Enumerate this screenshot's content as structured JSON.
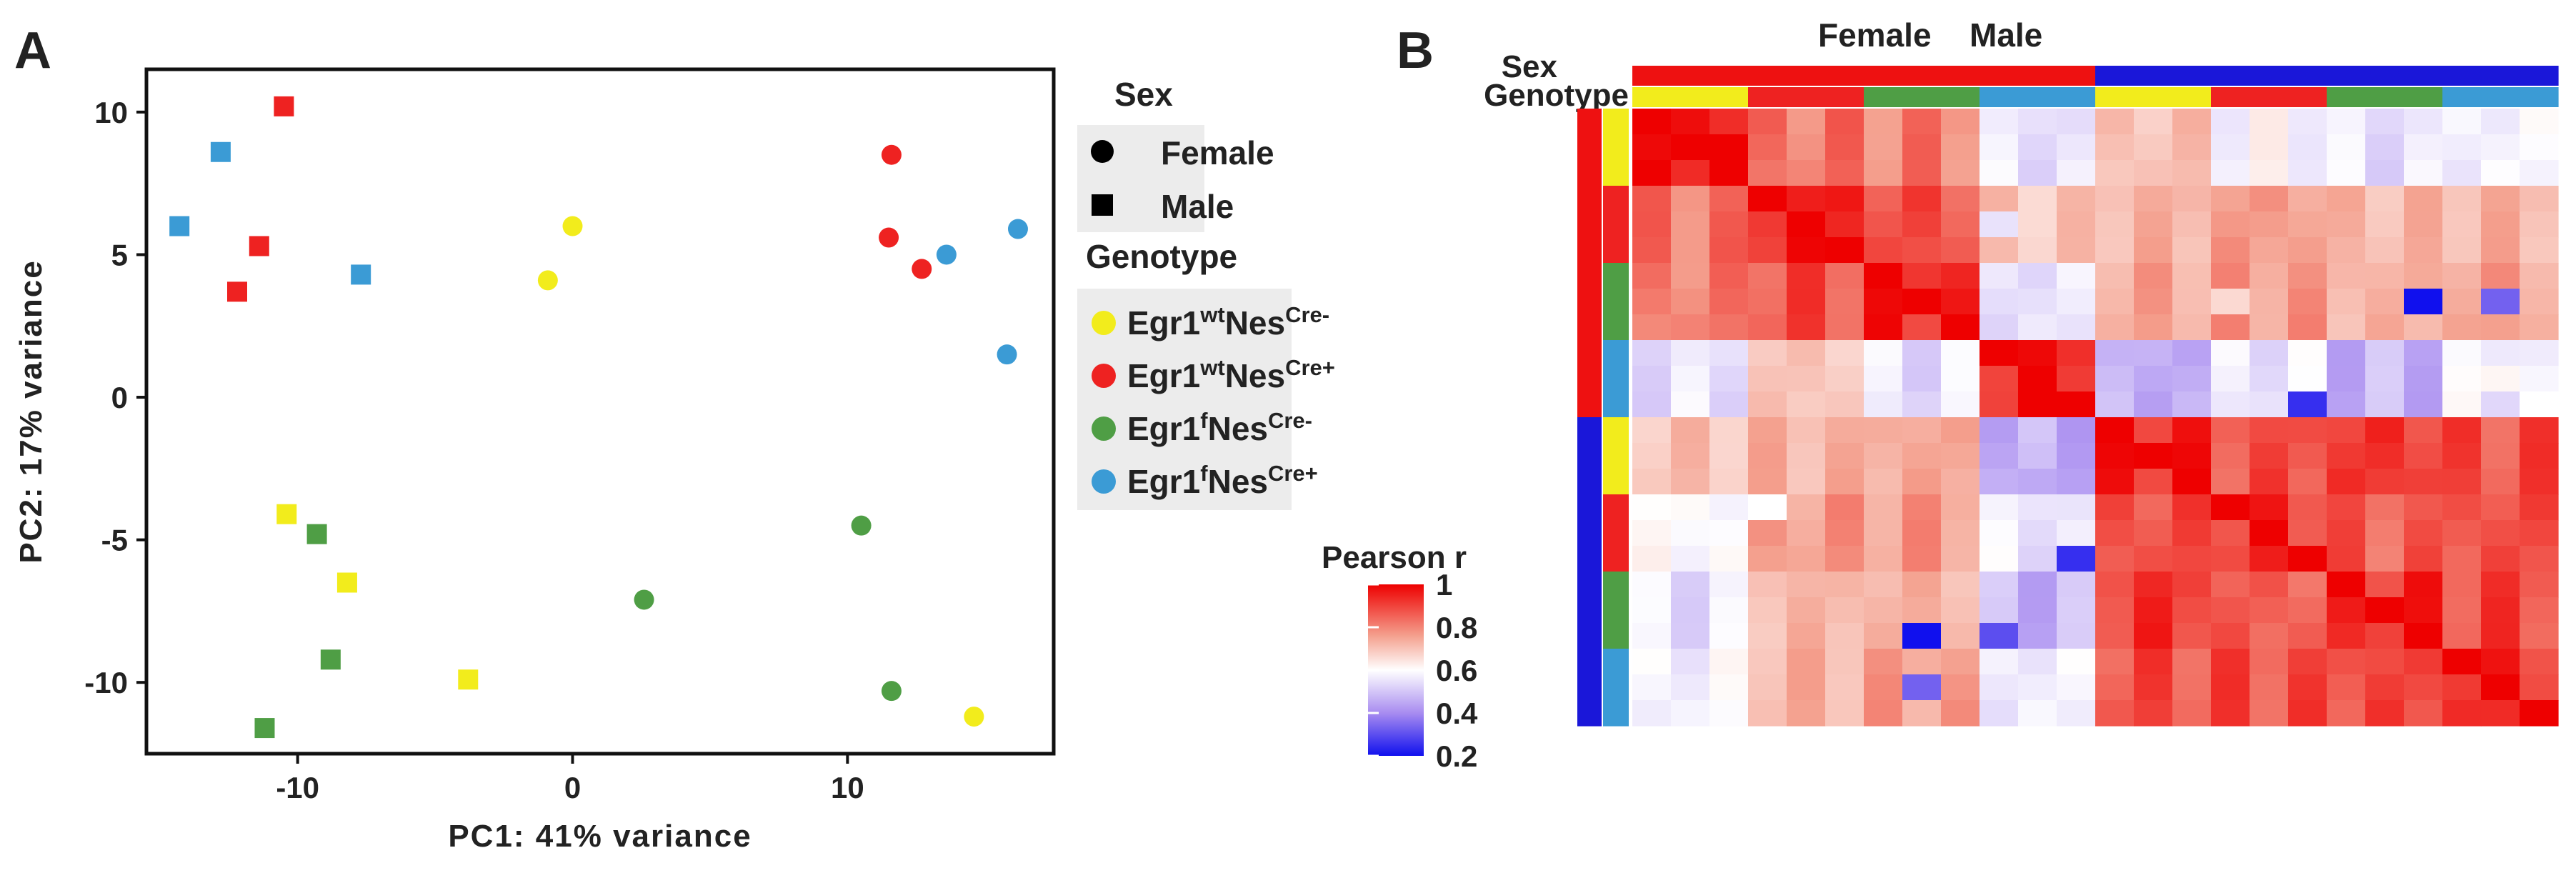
{
  "panels": {
    "a": "A",
    "b": "B"
  },
  "colors": {
    "yellow": "#f2ec1c",
    "red": "#ee2221",
    "green": "#4f9e45",
    "blue": "#3b9bd5",
    "female": "#ee1111",
    "male": "#1a17d9"
  },
  "chart_data": [
    {
      "type": "scatter",
      "title": "",
      "xlabel": "PC1: 41% variance",
      "ylabel": "PC2: 17% variance",
      "xlim": [
        -15.5,
        17.5
      ],
      "ylim": [
        -12.5,
        11.5
      ],
      "xticks": [
        -10,
        0,
        10
      ],
      "yticks": [
        -10,
        -5,
        0,
        5,
        10
      ],
      "xtick_labels": [
        "-10",
        "0",
        "10"
      ],
      "ytick_labels": [
        "-10",
        "-5",
        "0",
        "5",
        "10"
      ],
      "legend": {
        "sex_title": "Sex",
        "sex_items": [
          {
            "label": "Female",
            "shape": "circle"
          },
          {
            "label": "Male",
            "shape": "square"
          }
        ],
        "genotype_title": "Genotype",
        "genotype_items": [
          {
            "base": "Egr1",
            "sup1": "wt",
            "mid": "Nes",
            "sup2": "Cre-",
            "color": "yellow"
          },
          {
            "base": "Egr1",
            "sup1": "wt",
            "mid": "Nes",
            "sup2": "Cre+",
            "color": "red"
          },
          {
            "base": "Egr1",
            "sup1": "f",
            "mid": "Nes",
            "sup2": "Cre-",
            "color": "green"
          },
          {
            "base": "Egr1",
            "sup1": "f",
            "mid": "Nes",
            "sup2": "Cre+",
            "color": "blue"
          }
        ]
      },
      "points": [
        {
          "x": -10.5,
          "y": 10.2,
          "genotype": "red",
          "sex": "Male"
        },
        {
          "x": -12.8,
          "y": 8.6,
          "genotype": "blue",
          "sex": "Male"
        },
        {
          "x": -14.3,
          "y": 6.0,
          "genotype": "blue",
          "sex": "Male"
        },
        {
          "x": -11.4,
          "y": 5.3,
          "genotype": "red",
          "sex": "Male"
        },
        {
          "x": -7.7,
          "y": 4.3,
          "genotype": "blue",
          "sex": "Male"
        },
        {
          "x": -12.2,
          "y": 3.7,
          "genotype": "red",
          "sex": "Male"
        },
        {
          "x": 0.0,
          "y": 6.0,
          "genotype": "yellow",
          "sex": "Female"
        },
        {
          "x": -0.9,
          "y": 4.1,
          "genotype": "yellow",
          "sex": "Female"
        },
        {
          "x": 11.6,
          "y": 8.5,
          "genotype": "red",
          "sex": "Female"
        },
        {
          "x": 11.5,
          "y": 5.6,
          "genotype": "red",
          "sex": "Female"
        },
        {
          "x": 13.6,
          "y": 5.0,
          "genotype": "blue",
          "sex": "Female"
        },
        {
          "x": 12.7,
          "y": 4.5,
          "genotype": "red",
          "sex": "Female"
        },
        {
          "x": 16.2,
          "y": 5.9,
          "genotype": "blue",
          "sex": "Female"
        },
        {
          "x": 15.8,
          "y": 1.5,
          "genotype": "blue",
          "sex": "Female"
        },
        {
          "x": -10.4,
          "y": -4.1,
          "genotype": "yellow",
          "sex": "Male"
        },
        {
          "x": -9.3,
          "y": -4.8,
          "genotype": "green",
          "sex": "Male"
        },
        {
          "x": -8.2,
          "y": -6.5,
          "genotype": "yellow",
          "sex": "Male"
        },
        {
          "x": -8.8,
          "y": -9.2,
          "genotype": "green",
          "sex": "Male"
        },
        {
          "x": -3.8,
          "y": -9.9,
          "genotype": "yellow",
          "sex": "Male"
        },
        {
          "x": -11.2,
          "y": -11.6,
          "genotype": "green",
          "sex": "Male"
        },
        {
          "x": 10.5,
          "y": -4.5,
          "genotype": "green",
          "sex": "Female"
        },
        {
          "x": 2.6,
          "y": -7.1,
          "genotype": "green",
          "sex": "Female"
        },
        {
          "x": 11.6,
          "y": -10.3,
          "genotype": "green",
          "sex": "Female"
        },
        {
          "x": 14.6,
          "y": -11.2,
          "genotype": "yellow",
          "sex": "Female"
        }
      ]
    },
    {
      "type": "heatmap",
      "title": "Female Male",
      "title_parts": [
        "Female",
        "Male"
      ],
      "annotation_labels": [
        "Sex",
        "Genotype"
      ],
      "colorbar_title": "Pearson r",
      "colorbar_ticks": [
        1,
        0.8,
        0.6,
        0.4,
        0.2
      ],
      "colorbar_tick_labels": [
        "1",
        "0.8",
        "0.6",
        "0.4",
        "0.2"
      ],
      "value_range": [
        0.2,
        1
      ],
      "samples": [
        {
          "sex": "female",
          "genotype": "yellow"
        },
        {
          "sex": "female",
          "genotype": "yellow"
        },
        {
          "sex": "female",
          "genotype": "yellow"
        },
        {
          "sex": "female",
          "genotype": "red"
        },
        {
          "sex": "female",
          "genotype": "red"
        },
        {
          "sex": "female",
          "genotype": "red"
        },
        {
          "sex": "female",
          "genotype": "green"
        },
        {
          "sex": "female",
          "genotype": "green"
        },
        {
          "sex": "female",
          "genotype": "green"
        },
        {
          "sex": "female",
          "genotype": "blue"
        },
        {
          "sex": "female",
          "genotype": "blue"
        },
        {
          "sex": "female",
          "genotype": "blue"
        },
        {
          "sex": "male",
          "genotype": "yellow"
        },
        {
          "sex": "male",
          "genotype": "yellow"
        },
        {
          "sex": "male",
          "genotype": "yellow"
        },
        {
          "sex": "male",
          "genotype": "red"
        },
        {
          "sex": "male",
          "genotype": "red"
        },
        {
          "sex": "male",
          "genotype": "red"
        },
        {
          "sex": "male",
          "genotype": "green"
        },
        {
          "sex": "male",
          "genotype": "green"
        },
        {
          "sex": "male",
          "genotype": "green"
        },
        {
          "sex": "male",
          "genotype": "blue"
        },
        {
          "sex": "male",
          "genotype": "blue"
        },
        {
          "sex": "male",
          "genotype": "blue"
        }
      ],
      "group_r": {
        "FY": [
          0.97,
          0.85,
          0.84,
          0.55,
          0.73,
          0.6,
          0.55,
          0.58
        ],
        "FR": [
          0.85,
          0.96,
          0.9,
          0.72,
          0.76,
          0.8,
          0.75,
          0.76
        ],
        "FG": [
          0.84,
          0.9,
          0.95,
          0.55,
          0.78,
          0.8,
          0.76,
          0.79
        ],
        "FB": [
          0.55,
          0.72,
          0.55,
          0.96,
          0.46,
          0.56,
          0.47,
          0.57
        ],
        "MY": [
          0.73,
          0.76,
          0.78,
          0.46,
          0.95,
          0.9,
          0.93,
          0.9
        ],
        "MR": [
          0.6,
          0.8,
          0.8,
          0.56,
          0.9,
          0.93,
          0.88,
          0.9
        ],
        "MG": [
          0.55,
          0.75,
          0.76,
          0.47,
          0.93,
          0.88,
          0.94,
          0.91
        ],
        "MB": [
          0.58,
          0.76,
          0.79,
          0.57,
          0.9,
          0.9,
          0.91,
          0.94
        ]
      },
      "overrides": [
        {
          "i": 0,
          "j": 0,
          "r": 1.0
        },
        {
          "i": 1,
          "j": 2,
          "r": 1.0
        },
        {
          "i": 9,
          "j": 9,
          "r": 1.0
        },
        {
          "i": 7,
          "j": 15,
          "r": 0.68
        },
        {
          "i": 4,
          "j": 9,
          "r": 0.55
        },
        {
          "i": 7,
          "j": 22,
          "r": 0.33
        },
        {
          "i": 22,
          "j": 7,
          "r": 0.33
        },
        {
          "i": 10,
          "j": 7,
          "r": 0.5
        },
        {
          "i": 11,
          "j": 17,
          "r": 0.25
        },
        {
          "i": 17,
          "j": 11,
          "r": 0.25
        },
        {
          "i": 7,
          "j": 20,
          "r": 0.2
        },
        {
          "i": 20,
          "j": 7,
          "r": 0.2
        },
        {
          "i": 20,
          "j": 9,
          "r": 0.3
        },
        {
          "i": 10,
          "j": 22,
          "r": 0.62
        },
        {
          "i": 14,
          "j": 10,
          "r": 0.45
        },
        {
          "i": 15,
          "j": 3,
          "r": 0.6
        }
      ]
    }
  ]
}
